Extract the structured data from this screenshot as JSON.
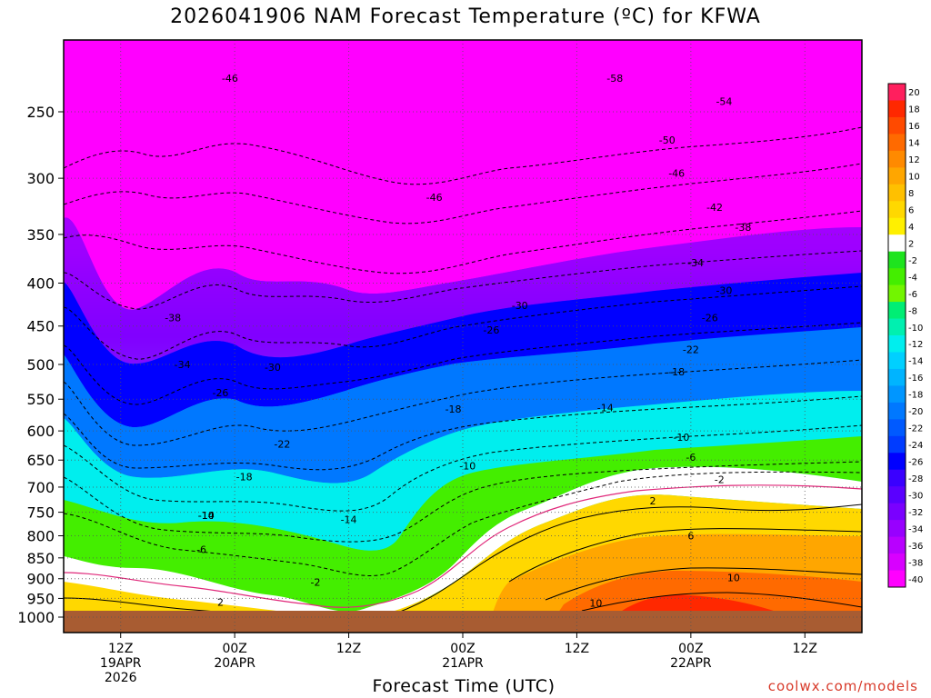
{
  "chart_data": {
    "type": "heatmap",
    "title": "2026041906 NAM Forecast Temperature (ºC) for KFWA",
    "xlabel": "Forecast Time (UTC)",
    "ylabel": "",
    "y_axis": {
      "ticks": [
        250,
        300,
        350,
        400,
        450,
        500,
        550,
        600,
        650,
        700,
        750,
        800,
        850,
        900,
        950,
        1000
      ],
      "range": [
        200,
        1000
      ],
      "scale": "log-pressure"
    },
    "x_axis": {
      "range_hours": [
        0,
        84
      ],
      "ticks": [
        {
          "hour": 6,
          "lines": [
            "12Z",
            "19APR",
            "2026"
          ]
        },
        {
          "hour": 18,
          "lines": [
            "00Z",
            "20APR"
          ]
        },
        {
          "hour": 30,
          "lines": [
            "12Z"
          ]
        },
        {
          "hour": 42,
          "lines": [
            "00Z",
            "21APR"
          ]
        },
        {
          "hour": 54,
          "lines": [
            "12Z"
          ]
        },
        {
          "hour": 66,
          "lines": [
            "00Z",
            "22APR"
          ]
        },
        {
          "hour": 78,
          "lines": [
            "12Z"
          ]
        }
      ]
    },
    "colorbar": {
      "labels": [
        20,
        18,
        16,
        14,
        12,
        10,
        8,
        6,
        4,
        2,
        -2,
        -4,
        -6,
        -8,
        -10,
        -12,
        -14,
        -16,
        -18,
        -20,
        -22,
        -24,
        -26,
        -28,
        -30,
        -32,
        -34,
        -36,
        -38,
        -40
      ],
      "colors": [
        "#ff1f5e",
        "#ff2800",
        "#ff4a00",
        "#ff6a00",
        "#ff8a00",
        "#ffa600",
        "#ffc000",
        "#ffd800",
        "#fff000",
        "#ffffff",
        "#1ee41e",
        "#44ee00",
        "#72f500",
        "#00ee74",
        "#00f0b0",
        "#00eeee",
        "#00d0ff",
        "#00b4ff",
        "#0096ff",
        "#0078ff",
        "#005aff",
        "#003cff",
        "#0000ff",
        "#3a00ff",
        "#5a00ff",
        "#7a00ff",
        "#9800ff",
        "#b800ff",
        "#d800ff",
        "#ff00ff"
      ]
    },
    "contour_labels": [
      {
        "value": "-58",
        "hour": 58,
        "p": 228
      },
      {
        "value": "-54",
        "hour": 69.5,
        "p": 243
      },
      {
        "value": "-50",
        "hour": 63.5,
        "p": 270
      },
      {
        "value": "-46",
        "hour": 17.5,
        "p": 228
      },
      {
        "value": "-46",
        "hour": 39,
        "p": 316
      },
      {
        "value": "-46",
        "hour": 64.5,
        "p": 296
      },
      {
        "value": "-42",
        "hour": 68.5,
        "p": 325
      },
      {
        "value": "-38",
        "hour": 11.5,
        "p": 440
      },
      {
        "value": "-38",
        "hour": 71.5,
        "p": 343
      },
      {
        "value": "-34",
        "hour": 66.5,
        "p": 378
      },
      {
        "value": "-34",
        "hour": 12.5,
        "p": 500
      },
      {
        "value": "-30",
        "hour": 48,
        "p": 425
      },
      {
        "value": "-30",
        "hour": 69.5,
        "p": 408
      },
      {
        "value": "-30",
        "hour": 22,
        "p": 504
      },
      {
        "value": "-26",
        "hour": 16.5,
        "p": 540
      },
      {
        "value": "-26",
        "hour": 45,
        "p": 455
      },
      {
        "value": "-26",
        "hour": 68,
        "p": 440
      },
      {
        "value": "-22",
        "hour": 23,
        "p": 622
      },
      {
        "value": "-22",
        "hour": 66,
        "p": 480
      },
      {
        "value": "-18",
        "hour": 19,
        "p": 680
      },
      {
        "value": "-18",
        "hour": 41,
        "p": 565
      },
      {
        "value": "-18",
        "hour": 64.5,
        "p": 510
      },
      {
        "value": "-14",
        "hour": 30,
        "p": 765
      },
      {
        "value": "-14",
        "hour": 57,
        "p": 563
      },
      {
        "value": "-14",
        "hour": 15,
        "p": 756
      },
      {
        "value": "-10",
        "hour": 15,
        "p": 756
      },
      {
        "value": "-10",
        "hour": 42.5,
        "p": 660
      },
      {
        "value": "-10",
        "hour": 65,
        "p": 610
      },
      {
        "value": "-6",
        "hour": 14.5,
        "p": 830
      },
      {
        "value": "-6",
        "hour": 66,
        "p": 645
      },
      {
        "value": "-2",
        "hour": 26.5,
        "p": 908
      },
      {
        "value": "-2",
        "hour": 69,
        "p": 685
      },
      {
        "value": "2",
        "hour": 16.5,
        "p": 960
      },
      {
        "value": "2",
        "hour": 62,
        "p": 727
      },
      {
        "value": "6",
        "hour": 66,
        "p": 800
      },
      {
        "value": "10",
        "hour": 70.5,
        "p": 897
      },
      {
        "value": "10",
        "hour": 56,
        "p": 962
      }
    ]
  },
  "watermark": "coolwx.com/models",
  "colors": {
    "ground": "#a85c32",
    "freezing_line": "#e0287a"
  }
}
